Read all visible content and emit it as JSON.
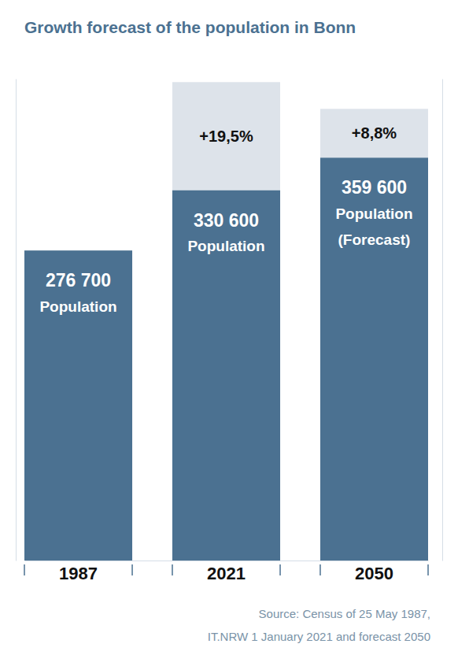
{
  "chart_data": {
    "type": "bar",
    "title": "Growth forecast of the population in Bonn",
    "categories": [
      "1987",
      "2021",
      "2050"
    ],
    "values": [
      276700,
      330600,
      359600
    ],
    "value_labels": [
      "276 700",
      "330 600",
      "359 600"
    ],
    "bar_labels": [
      [
        "Population"
      ],
      [
        "Population"
      ],
      [
        "Population",
        "(Forecast)"
      ]
    ],
    "growth": [
      null,
      19.5,
      8.8
    ],
    "growth_labels": [
      null,
      "+19,5%",
      "+8,8%"
    ],
    "color": "#4b7191",
    "ylim": [
      0,
      430000
    ],
    "y2lim": [
      0,
      87
    ],
    "stacked": true,
    "data_labels": true,
    "tick_labels": "x",
    "source": [
      "Source: Census of 25 May 1987,",
      "IT.NRW 1 January 2021 and forecast 2050"
    ]
  }
}
